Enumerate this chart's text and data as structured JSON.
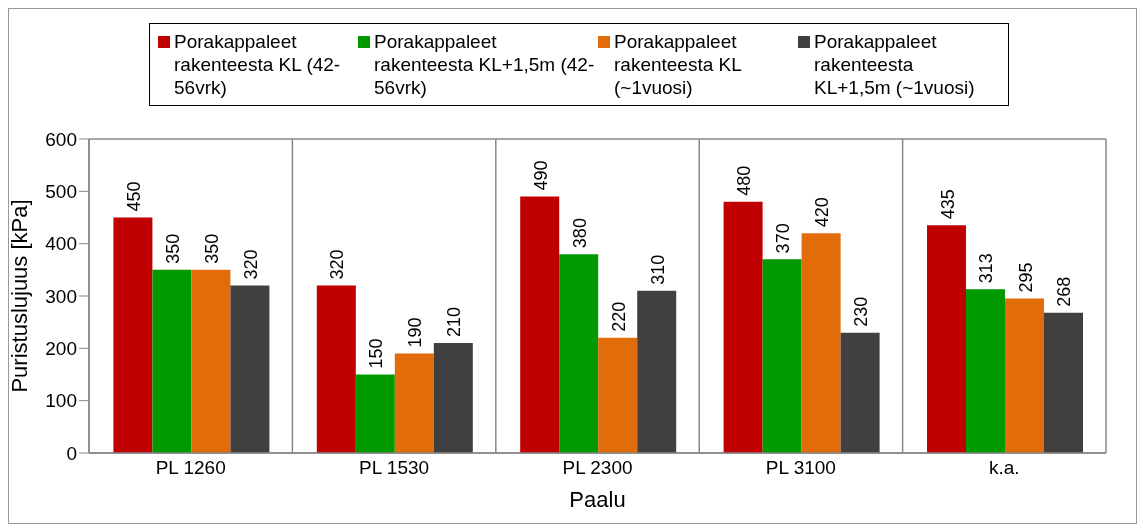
{
  "chart_data": {
    "type": "bar",
    "xlabel": "Paalu",
    "ylabel": "Puristuslujuus [kPa]",
    "categories": [
      "PL 1260",
      "PL 1530",
      "PL 2300",
      "PL 3100",
      "k.a."
    ],
    "series": [
      {
        "name": "Porakappaleet rakenteesta KL (42-56vrk)",
        "color": "#c00000",
        "values": [
          450,
          320,
          490,
          480,
          435
        ]
      },
      {
        "name": "Porakappaleet rakenteesta KL+1,5m  (42-56vrk)",
        "color": "#009900",
        "values": [
          350,
          150,
          380,
          370,
          313
        ]
      },
      {
        "name": "Porakappaleet rakenteesta KL (~1vuosi)",
        "color": "#e36c0a",
        "values": [
          350,
          190,
          220,
          420,
          295
        ]
      },
      {
        "name": "Porakappaleet rakenteesta KL+1,5m (~1vuosi)",
        "color": "#404040",
        "values": [
          320,
          210,
          310,
          230,
          268
        ]
      }
    ],
    "ylim": [
      0,
      600
    ],
    "yticks": [
      0,
      100,
      200,
      300,
      400,
      500,
      600
    ],
    "grid": true,
    "legend": "top",
    "data_labels": true
  }
}
